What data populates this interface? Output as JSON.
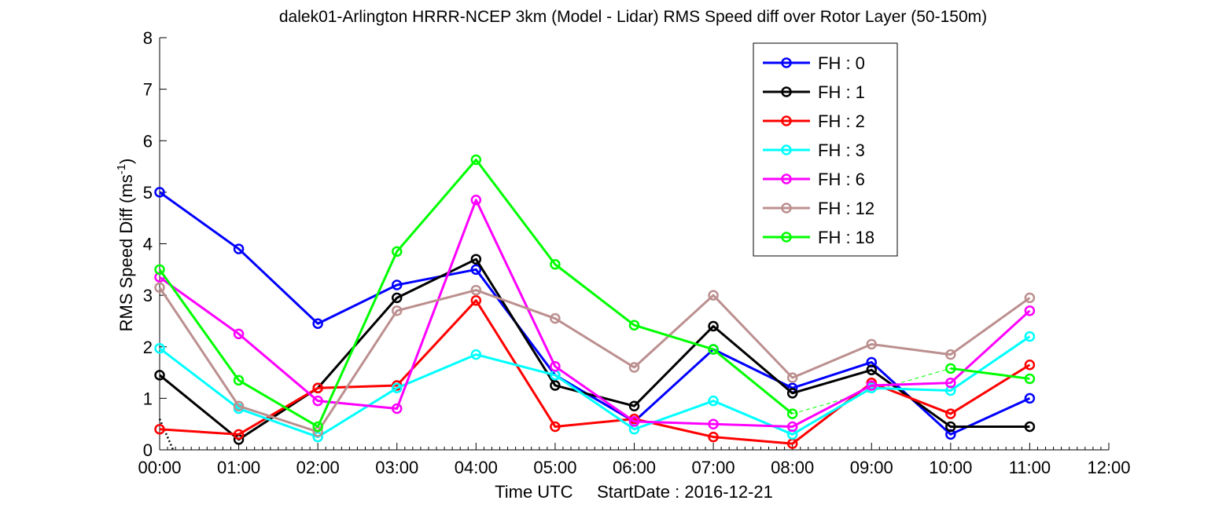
{
  "chart_data": {
    "type": "line",
    "title": "dalek01-Arlington HRRR-NCEP 3km (Model - Lidar) RMS Speed diff over Rotor Layer (50-150m)",
    "xlabel": "Time UTC     StartDate : 2016-12-21",
    "ylabel": "RMS Speed Diff (ms",
    "ylabel_sup": "-1",
    "ylabel_close": ")",
    "x_ticks": [
      "00:00",
      "01:00",
      "02:00",
      "03:00",
      "04:00",
      "05:00",
      "06:00",
      "07:00",
      "08:00",
      "09:00",
      "10:00",
      "11:00",
      "12:00"
    ],
    "y_ticks": [
      "0",
      "1",
      "2",
      "3",
      "4",
      "5",
      "6",
      "7",
      "8"
    ],
    "xlim": [
      0,
      12
    ],
    "ylim": [
      0,
      8
    ],
    "grid": false,
    "legend_position": "top-right",
    "x": [
      0,
      1,
      2,
      3,
      4,
      5,
      6,
      7,
      8,
      9,
      10,
      11
    ],
    "series": [
      {
        "name": "FH : 0",
        "color": "#0000ff",
        "values": [
          5.0,
          3.9,
          2.45,
          3.2,
          3.5,
          1.45,
          0.55,
          1.95,
          1.2,
          1.7,
          0.3,
          1.0
        ]
      },
      {
        "name": "FH : 1",
        "color": "#000000",
        "values": [
          1.45,
          0.2,
          1.2,
          2.95,
          3.7,
          1.25,
          0.85,
          2.4,
          1.1,
          1.55,
          0.45,
          0.45
        ]
      },
      {
        "name": "FH : 2",
        "color": "#ff0000",
        "values": [
          0.4,
          0.3,
          1.2,
          1.25,
          2.9,
          0.45,
          0.6,
          0.25,
          0.12,
          1.3,
          0.7,
          1.65
        ]
      },
      {
        "name": "FH : 3",
        "color": "#00ffff",
        "values": [
          1.97,
          0.8,
          0.25,
          1.2,
          1.85,
          1.45,
          0.4,
          0.95,
          0.3,
          1.2,
          1.15,
          2.2
        ]
      },
      {
        "name": "FH : 6",
        "color": "#ff00ff",
        "values": [
          3.35,
          2.25,
          0.95,
          0.8,
          4.85,
          1.62,
          0.55,
          0.5,
          0.45,
          1.25,
          1.3,
          2.7
        ]
      },
      {
        "name": "FH : 12",
        "color": "#bc8f8f",
        "values": [
          3.15,
          0.85,
          0.35,
          2.7,
          3.1,
          2.55,
          1.6,
          3.0,
          1.4,
          2.05,
          1.85,
          2.95
        ]
      },
      {
        "name": "FH : 18",
        "color": "#00ff00",
        "values": [
          3.5,
          1.35,
          0.45,
          3.85,
          5.63,
          3.6,
          2.42,
          1.95,
          0.7,
          null,
          1.58,
          1.38
        ]
      }
    ],
    "dashed_connector": {
      "color": "#00ff00",
      "from": [
        8,
        0.7
      ],
      "to": [
        10,
        1.58
      ]
    },
    "dotted_segment": {
      "color": "#000000",
      "from": [
        0,
        0.6
      ],
      "to": [
        0.17,
        0
      ]
    }
  }
}
